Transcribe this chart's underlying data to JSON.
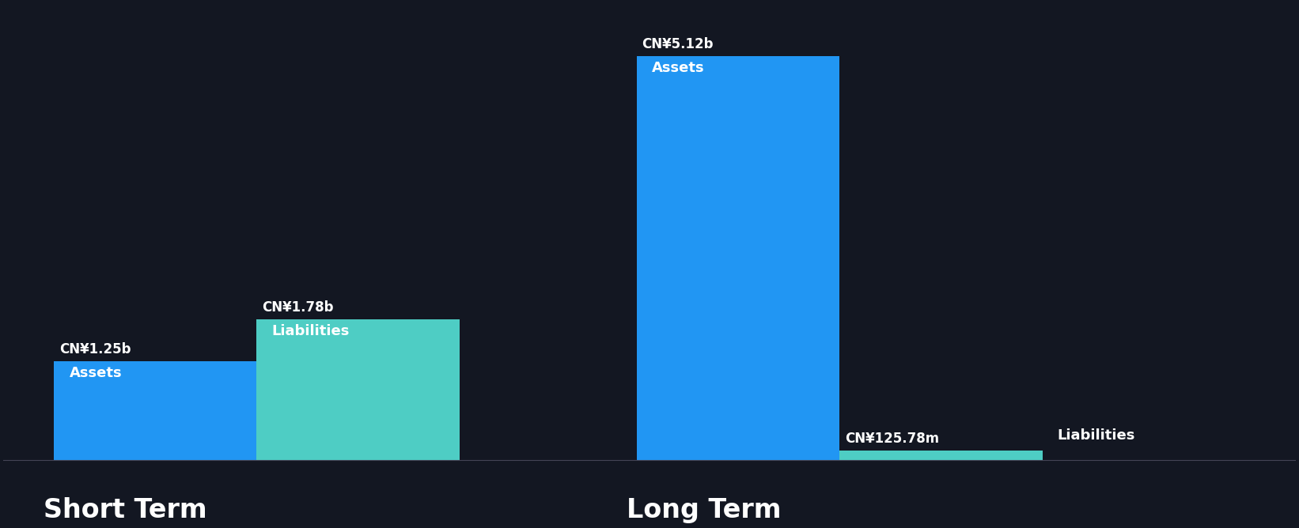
{
  "background_color": "#131722",
  "text_color": "#ffffff",
  "groups": [
    {
      "label": "Short Term",
      "bars": [
        {
          "name": "Assets",
          "value": 1.25,
          "display": "CN¥1.25b",
          "color": "#2196F3",
          "inner_label": "Assets",
          "label_inside": true
        },
        {
          "name": "Liabilities",
          "value": 1.78,
          "display": "CN¥1.78b",
          "color": "#4ECDC4",
          "inner_label": "Liabilities",
          "label_inside": true
        }
      ]
    },
    {
      "label": "Long Term",
      "bars": [
        {
          "name": "Assets",
          "value": 5.12,
          "display": "CN¥5.12b",
          "color": "#2196F3",
          "inner_label": "Assets",
          "label_inside": true
        },
        {
          "name": "Liabilities",
          "value": 0.12578,
          "display": "CN¥125.78m",
          "color": "#4ECDC4",
          "inner_label": "Liabilities",
          "label_inside": false
        }
      ]
    }
  ],
  "value_fontsize": 12,
  "group_label_fontsize": 24,
  "inner_label_fontsize": 13,
  "liabilities_outside_label_fontsize": 12
}
